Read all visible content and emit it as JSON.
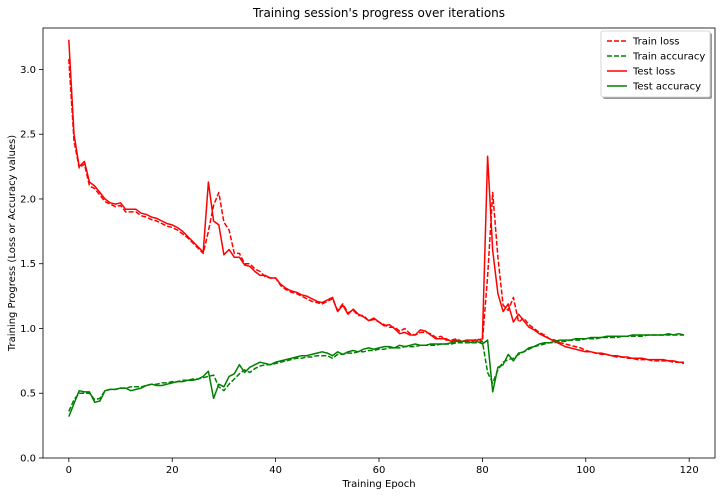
{
  "chart_data": {
    "type": "line",
    "title": "Training session's progress over iterations",
    "xlabel": "Training Epoch",
    "ylabel": "Training Progress (Loss or Accuracy values)",
    "xlim": [
      -5,
      125
    ],
    "ylim": [
      0.0,
      3.32
    ],
    "xticks": [
      0,
      20,
      40,
      60,
      80,
      100,
      120
    ],
    "xtick_labels": [
      "0",
      "20",
      "40",
      "60",
      "80",
      "100",
      "120"
    ],
    "yticks": [
      0.0,
      0.5,
      1.0,
      1.5,
      2.0,
      2.5,
      3.0
    ],
    "ytick_labels": [
      "0.0",
      "0.5",
      "1.0",
      "1.5",
      "2.0",
      "2.5",
      "3.0"
    ],
    "grid": false,
    "legend_position": "top-right",
    "colors": {
      "loss": "#ff0000",
      "accuracy": "#008000"
    },
    "series": [
      {
        "name": "Train loss",
        "style": "dashed",
        "color": "#ff0000",
        "x": [
          0,
          1,
          2,
          3,
          4,
          5,
          6,
          7,
          8,
          9,
          10,
          11,
          12,
          13,
          14,
          15,
          16,
          17,
          18,
          19,
          20,
          21,
          22,
          23,
          24,
          25,
          26,
          27,
          28,
          29,
          30,
          31,
          32,
          33,
          34,
          35,
          36,
          37,
          38,
          39,
          40,
          41,
          42,
          43,
          44,
          45,
          46,
          47,
          48,
          49,
          50,
          51,
          52,
          53,
          54,
          55,
          56,
          57,
          58,
          59,
          60,
          61,
          62,
          63,
          64,
          65,
          66,
          67,
          68,
          69,
          70,
          71,
          72,
          73,
          74,
          75,
          76,
          77,
          78,
          79,
          80,
          81,
          82,
          83,
          84,
          85,
          86,
          87,
          88,
          89,
          90,
          91,
          92,
          93,
          94,
          95,
          96,
          97,
          98,
          99,
          100,
          101,
          102,
          103,
          104,
          105,
          106,
          107,
          108,
          109,
          110,
          111,
          112,
          113,
          114,
          115,
          116,
          117,
          118,
          119
        ],
        "y": [
          3.08,
          2.45,
          2.24,
          2.27,
          2.1,
          2.08,
          2.03,
          1.98,
          1.96,
          1.94,
          1.95,
          1.9,
          1.9,
          1.9,
          1.87,
          1.86,
          1.84,
          1.83,
          1.81,
          1.79,
          1.78,
          1.76,
          1.73,
          1.7,
          1.66,
          1.62,
          1.58,
          1.75,
          1.95,
          2.05,
          1.82,
          1.76,
          1.58,
          1.58,
          1.5,
          1.5,
          1.46,
          1.44,
          1.4,
          1.39,
          1.39,
          1.33,
          1.3,
          1.28,
          1.27,
          1.25,
          1.23,
          1.21,
          1.2,
          1.19,
          1.21,
          1.23,
          1.14,
          1.19,
          1.12,
          1.14,
          1.1,
          1.1,
          1.06,
          1.07,
          1.05,
          1.03,
          1.01,
          1.01,
          0.98,
          1.0,
          0.96,
          0.95,
          0.97,
          0.97,
          0.96,
          0.93,
          0.94,
          0.91,
          0.91,
          0.92,
          0.9,
          0.91,
          0.9,
          0.92,
          0.9,
          1.4,
          2.05,
          1.55,
          1.18,
          1.14,
          1.24,
          1.05,
          1.08,
          1.03,
          1.0,
          0.97,
          0.95,
          0.92,
          0.91,
          0.89,
          0.88,
          0.87,
          0.86,
          0.85,
          0.83,
          0.82,
          0.81,
          0.8,
          0.8,
          0.79,
          0.78,
          0.78,
          0.77,
          0.77,
          0.76,
          0.76,
          0.76,
          0.75,
          0.75,
          0.75,
          0.75,
          0.74,
          0.74,
          0.73
        ]
      },
      {
        "name": "Train accuracy",
        "style": "dashed",
        "color": "#008000",
        "x": [
          0,
          1,
          2,
          3,
          4,
          5,
          6,
          7,
          8,
          9,
          10,
          11,
          12,
          13,
          14,
          15,
          16,
          17,
          18,
          19,
          20,
          21,
          22,
          23,
          24,
          25,
          26,
          27,
          28,
          29,
          30,
          31,
          32,
          33,
          34,
          35,
          36,
          37,
          38,
          39,
          40,
          41,
          42,
          43,
          44,
          45,
          46,
          47,
          48,
          49,
          50,
          51,
          52,
          53,
          54,
          55,
          56,
          57,
          58,
          59,
          60,
          61,
          62,
          63,
          64,
          65,
          66,
          67,
          68,
          69,
          70,
          71,
          72,
          73,
          74,
          75,
          76,
          77,
          78,
          79,
          80,
          81,
          82,
          83,
          84,
          85,
          86,
          87,
          88,
          89,
          90,
          91,
          92,
          93,
          94,
          95,
          96,
          97,
          98,
          99,
          100,
          101,
          102,
          103,
          104,
          105,
          106,
          107,
          108,
          109,
          110,
          111,
          112,
          113,
          114,
          115,
          116,
          117,
          118,
          119
        ],
        "y": [
          0.36,
          0.45,
          0.5,
          0.5,
          0.5,
          0.45,
          0.46,
          0.52,
          0.53,
          0.53,
          0.54,
          0.54,
          0.55,
          0.55,
          0.55,
          0.56,
          0.57,
          0.57,
          0.58,
          0.58,
          0.59,
          0.59,
          0.6,
          0.6,
          0.61,
          0.61,
          0.62,
          0.63,
          0.64,
          0.55,
          0.52,
          0.57,
          0.61,
          0.65,
          0.68,
          0.66,
          0.69,
          0.71,
          0.72,
          0.72,
          0.73,
          0.74,
          0.75,
          0.76,
          0.77,
          0.77,
          0.78,
          0.78,
          0.79,
          0.79,
          0.79,
          0.77,
          0.8,
          0.8,
          0.81,
          0.81,
          0.82,
          0.82,
          0.83,
          0.83,
          0.84,
          0.84,
          0.85,
          0.85,
          0.85,
          0.86,
          0.86,
          0.86,
          0.87,
          0.87,
          0.87,
          0.87,
          0.88,
          0.88,
          0.88,
          0.89,
          0.89,
          0.89,
          0.89,
          0.89,
          0.9,
          0.66,
          0.58,
          0.68,
          0.74,
          0.76,
          0.77,
          0.8,
          0.82,
          0.84,
          0.86,
          0.87,
          0.88,
          0.89,
          0.89,
          0.9,
          0.9,
          0.91,
          0.91,
          0.91,
          0.92,
          0.92,
          0.92,
          0.93,
          0.93,
          0.93,
          0.93,
          0.94,
          0.94,
          0.94,
          0.94,
          0.94,
          0.95,
          0.95,
          0.95,
          0.95,
          0.95,
          0.95,
          0.95,
          0.95
        ]
      },
      {
        "name": "Test loss",
        "style": "solid",
        "color": "#ff0000",
        "x": [
          0,
          1,
          2,
          3,
          4,
          5,
          6,
          7,
          8,
          9,
          10,
          11,
          12,
          13,
          14,
          15,
          16,
          17,
          18,
          19,
          20,
          21,
          22,
          23,
          24,
          25,
          26,
          27,
          28,
          29,
          30,
          31,
          32,
          33,
          34,
          35,
          36,
          37,
          38,
          39,
          40,
          41,
          42,
          43,
          44,
          45,
          46,
          47,
          48,
          49,
          50,
          51,
          52,
          53,
          54,
          55,
          56,
          57,
          58,
          59,
          60,
          61,
          62,
          63,
          64,
          65,
          66,
          67,
          68,
          69,
          70,
          71,
          72,
          73,
          74,
          75,
          76,
          77,
          78,
          79,
          80,
          81,
          82,
          83,
          84,
          85,
          86,
          87,
          88,
          89,
          90,
          91,
          92,
          93,
          94,
          95,
          96,
          97,
          98,
          99,
          100,
          101,
          102,
          103,
          104,
          105,
          106,
          107,
          108,
          109,
          110,
          111,
          112,
          113,
          114,
          115,
          116,
          117,
          118,
          119
        ],
        "y": [
          3.23,
          2.5,
          2.25,
          2.29,
          2.13,
          2.1,
          2.05,
          2.0,
          1.97,
          1.96,
          1.97,
          1.92,
          1.92,
          1.92,
          1.89,
          1.88,
          1.86,
          1.85,
          1.83,
          1.81,
          1.8,
          1.78,
          1.75,
          1.71,
          1.67,
          1.63,
          1.59,
          2.13,
          1.83,
          1.8,
          1.57,
          1.61,
          1.55,
          1.55,
          1.49,
          1.48,
          1.44,
          1.41,
          1.41,
          1.39,
          1.39,
          1.34,
          1.31,
          1.29,
          1.28,
          1.26,
          1.25,
          1.23,
          1.21,
          1.2,
          1.22,
          1.24,
          1.13,
          1.18,
          1.11,
          1.15,
          1.11,
          1.09,
          1.06,
          1.08,
          1.05,
          1.02,
          1.03,
          1.0,
          0.96,
          0.97,
          0.95,
          0.95,
          0.99,
          0.98,
          0.95,
          0.92,
          0.92,
          0.92,
          0.9,
          0.91,
          0.9,
          0.91,
          0.91,
          0.91,
          0.92,
          2.33,
          1.6,
          1.27,
          1.13,
          1.19,
          1.05,
          1.11,
          1.06,
          1.01,
          0.99,
          0.96,
          0.94,
          0.92,
          0.9,
          0.88,
          0.86,
          0.85,
          0.84,
          0.83,
          0.82,
          0.82,
          0.81,
          0.81,
          0.8,
          0.79,
          0.79,
          0.78,
          0.78,
          0.77,
          0.77,
          0.77,
          0.76,
          0.76,
          0.76,
          0.76,
          0.75,
          0.75,
          0.74,
          0.74
        ]
      },
      {
        "name": "Test accuracy",
        "style": "solid",
        "color": "#008000",
        "x": [
          0,
          1,
          2,
          3,
          4,
          5,
          6,
          7,
          8,
          9,
          10,
          11,
          12,
          13,
          14,
          15,
          16,
          17,
          18,
          19,
          20,
          21,
          22,
          23,
          24,
          25,
          26,
          27,
          28,
          29,
          30,
          31,
          32,
          33,
          34,
          35,
          36,
          37,
          38,
          39,
          40,
          41,
          42,
          43,
          44,
          45,
          46,
          47,
          48,
          49,
          50,
          51,
          52,
          53,
          54,
          55,
          56,
          57,
          58,
          59,
          60,
          61,
          62,
          63,
          64,
          65,
          66,
          67,
          68,
          69,
          70,
          71,
          72,
          73,
          74,
          75,
          76,
          77,
          78,
          79,
          80,
          81,
          82,
          83,
          84,
          85,
          86,
          87,
          88,
          89,
          90,
          91,
          92,
          93,
          94,
          95,
          96,
          97,
          98,
          99,
          100,
          101,
          102,
          103,
          104,
          105,
          106,
          107,
          108,
          109,
          110,
          111,
          112,
          113,
          114,
          115,
          116,
          117,
          118,
          119
        ],
        "y": [
          0.32,
          0.42,
          0.52,
          0.51,
          0.51,
          0.43,
          0.44,
          0.52,
          0.53,
          0.53,
          0.54,
          0.54,
          0.52,
          0.53,
          0.54,
          0.56,
          0.57,
          0.56,
          0.56,
          0.57,
          0.58,
          0.59,
          0.59,
          0.6,
          0.6,
          0.61,
          0.63,
          0.67,
          0.46,
          0.57,
          0.55,
          0.63,
          0.65,
          0.72,
          0.66,
          0.7,
          0.72,
          0.74,
          0.73,
          0.72,
          0.74,
          0.75,
          0.76,
          0.77,
          0.78,
          0.79,
          0.79,
          0.8,
          0.81,
          0.82,
          0.81,
          0.79,
          0.82,
          0.8,
          0.82,
          0.83,
          0.82,
          0.84,
          0.85,
          0.84,
          0.85,
          0.86,
          0.86,
          0.85,
          0.87,
          0.86,
          0.87,
          0.88,
          0.87,
          0.87,
          0.88,
          0.88,
          0.88,
          0.88,
          0.89,
          0.9,
          0.9,
          0.9,
          0.89,
          0.9,
          0.88,
          0.91,
          0.51,
          0.7,
          0.72,
          0.8,
          0.75,
          0.81,
          0.82,
          0.85,
          0.86,
          0.88,
          0.89,
          0.89,
          0.9,
          0.91,
          0.91,
          0.91,
          0.92,
          0.92,
          0.92,
          0.93,
          0.93,
          0.93,
          0.94,
          0.94,
          0.94,
          0.94,
          0.94,
          0.95,
          0.95,
          0.95,
          0.95,
          0.95,
          0.95,
          0.95,
          0.96,
          0.95,
          0.96,
          0.95
        ]
      }
    ]
  }
}
